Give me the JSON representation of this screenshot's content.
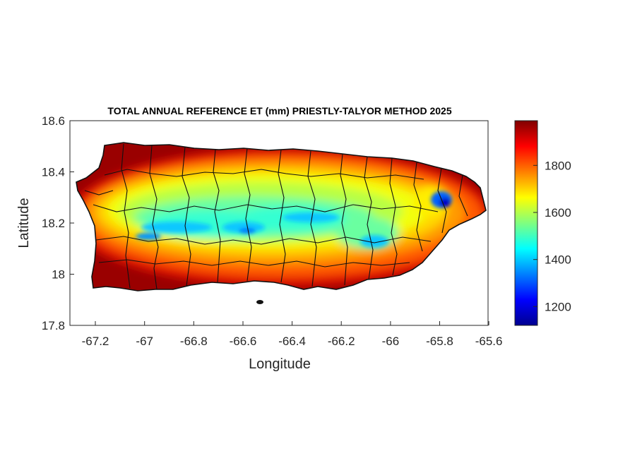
{
  "figure": {
    "title": "TOTAL ANNUAL REFERENCE ET (mm) PRIESTLY-TALYOR METHOD 2025",
    "xlabel": "Longitude",
    "ylabel": "Latitude"
  },
  "chart_data": {
    "type": "heatmap",
    "title": "TOTAL ANNUAL REFERENCE ET (mm) PRIESTLY-TALYOR METHOD 2025",
    "xlabel": "Longitude",
    "ylabel": "Latitude",
    "xlim": [
      -67.3,
      -65.59
    ],
    "ylim": [
      17.8,
      18.6
    ],
    "xticks": [
      -67.2,
      -67,
      -66.8,
      -66.6,
      -66.4,
      -66.2,
      -66,
      -65.8,
      -65.6
    ],
    "xtick_labels": [
      "-67.2",
      "-67",
      "-66.8",
      "-66.6",
      "-66.4",
      "-66.2",
      "-66",
      "-65.8",
      "-65.6"
    ],
    "yticks": [
      17.8,
      18,
      18.2,
      18.4,
      18.6
    ],
    "ytick_labels": [
      "17.8",
      "18",
      "18.2",
      "18.4",
      "18.6"
    ],
    "colorbar": {
      "colormap": "jet",
      "range": [
        1120,
        1990
      ],
      "ticks": [
        1200,
        1400,
        1600,
        1800
      ],
      "tick_labels": [
        "1200",
        "1400",
        "1600",
        "1800"
      ]
    },
    "approx_field": {
      "coast_value": 1950,
      "interior_min_value": 1450,
      "central_ridge_min_value": 1400,
      "el_yunque_min_value": 1150
    },
    "grid": false,
    "legend": "colorbar-right"
  }
}
